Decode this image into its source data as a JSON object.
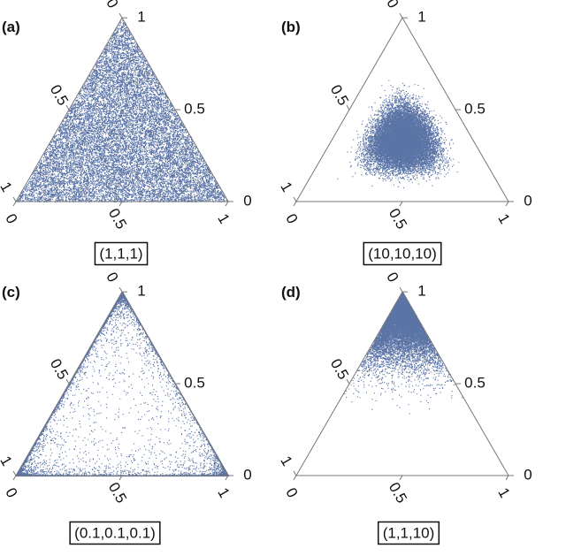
{
  "chart_data": [
    {
      "type": "scatter",
      "panel_label": "(a)",
      "caption": "(1,1,1)",
      "alpha": [
        1,
        1,
        1
      ],
      "point_color": "#5b74a6",
      "axis_ticks": {
        "right": [
          "1",
          "0.5",
          "0"
        ],
        "left": [
          "0",
          "0.5",
          "1"
        ],
        "bottom": [
          "0",
          "0.5",
          "1"
        ]
      }
    },
    {
      "type": "scatter",
      "panel_label": "(b)",
      "caption": "(10,10,10)",
      "alpha": [
        10,
        10,
        10
      ],
      "point_color": "#5b74a6",
      "axis_ticks": {
        "right": [
          "1",
          "0.5",
          "0"
        ],
        "left": [
          "0",
          "0.5",
          "1"
        ],
        "bottom": [
          "0",
          "0.5",
          "1"
        ]
      }
    },
    {
      "type": "scatter",
      "panel_label": "(c)",
      "caption": "(0.1,0.1,0.1)",
      "alpha": [
        0.1,
        0.1,
        0.1
      ],
      "point_color": "#5b74a6",
      "axis_ticks": {
        "right": [
          "1",
          "0.5",
          "0"
        ],
        "left": [
          "0",
          "0.5",
          "1"
        ],
        "bottom": [
          "0",
          "0.5",
          "1"
        ]
      }
    },
    {
      "type": "scatter",
      "panel_label": "(d)",
      "caption": "(1,1,10)",
      "alpha": [
        1,
        1,
        10
      ],
      "point_color": "#5b74a6",
      "axis_ticks": {
        "right": [
          "1",
          "0.5",
          "0"
        ],
        "left": [
          "0",
          "0.5",
          "1"
        ],
        "bottom": [
          "0",
          "0.5",
          "1"
        ]
      }
    }
  ]
}
